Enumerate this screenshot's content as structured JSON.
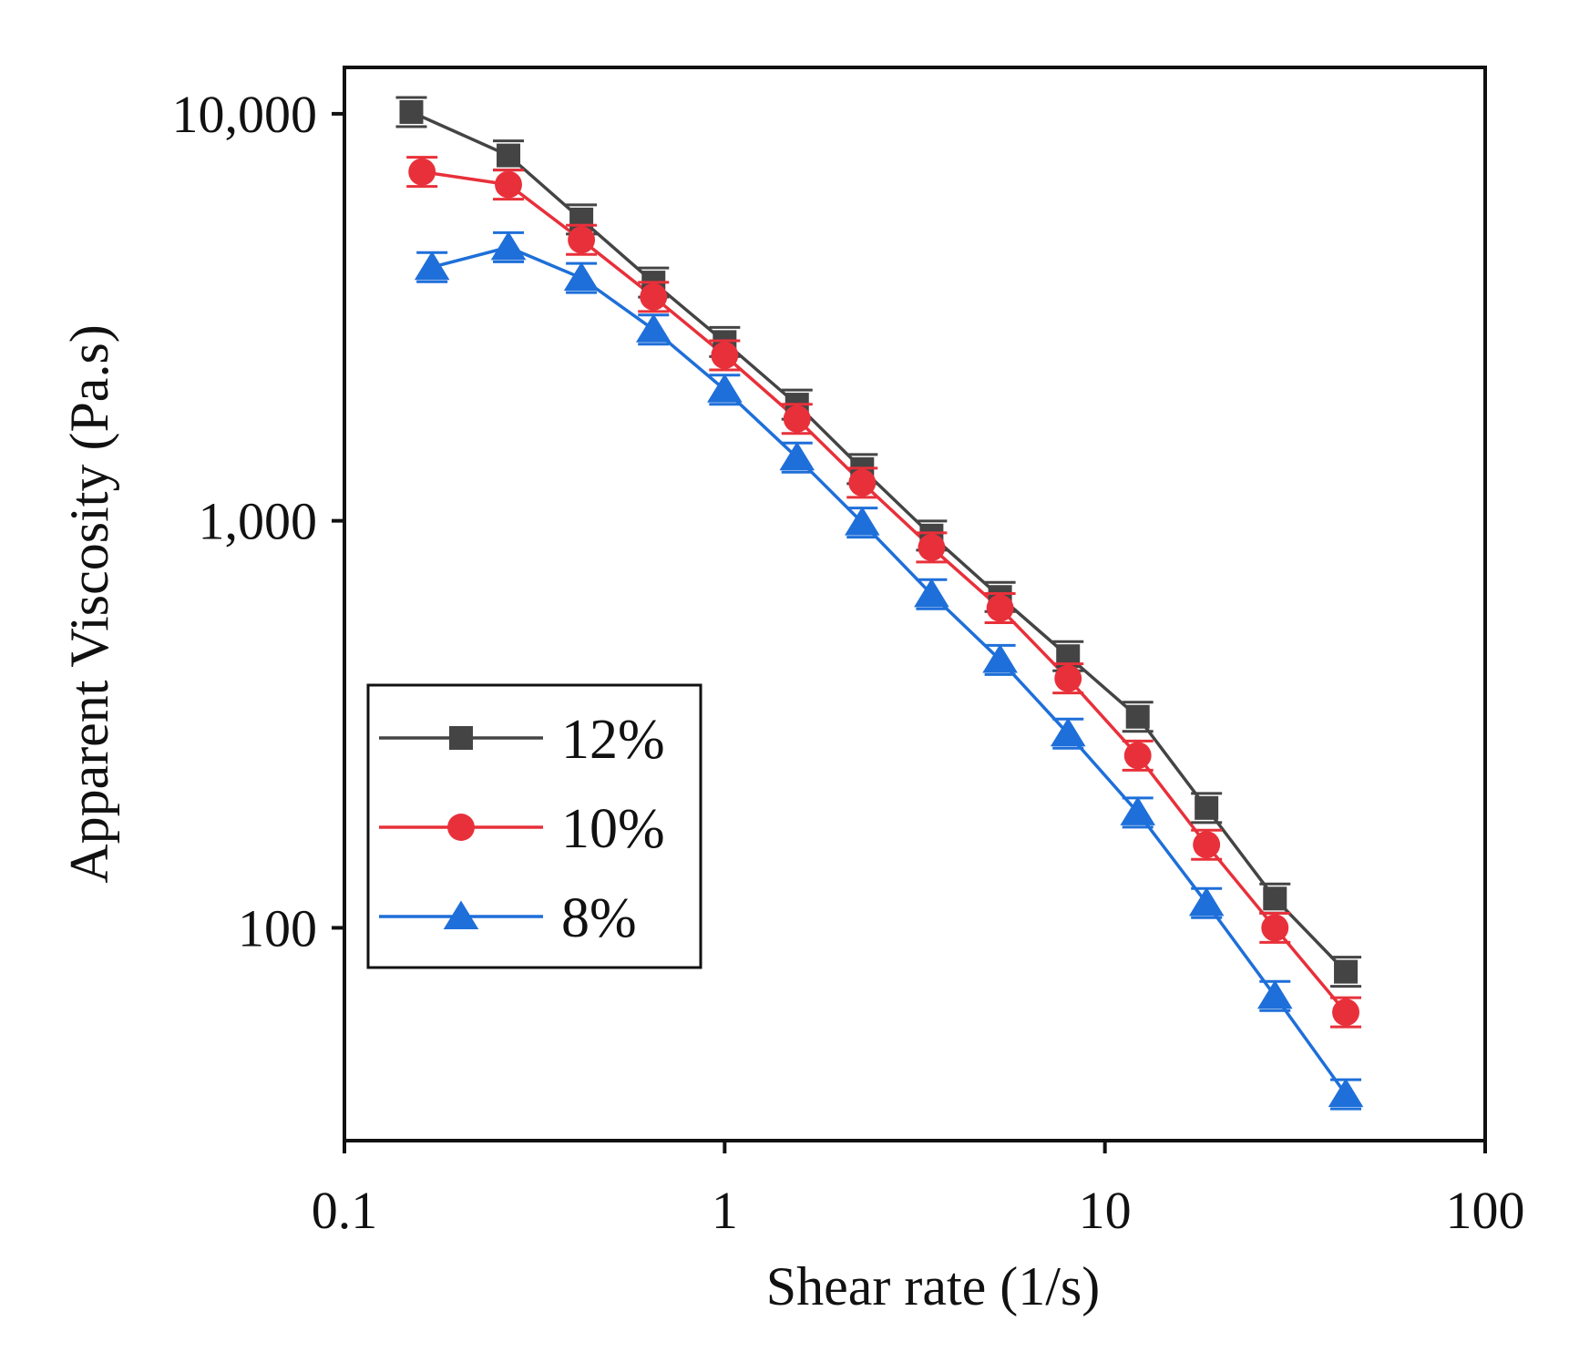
{
  "chart_data": {
    "type": "line",
    "title": "",
    "xlabel": "Shear rate (1/s)",
    "ylabel": "Apparent Viscosity (Pa.s)",
    "xscale": "log",
    "yscale": "log",
    "xlim": [
      0.1,
      100
    ],
    "ylim": [
      30,
      13000
    ],
    "x_ticks": [
      {
        "value": 0.1,
        "label": "0.1"
      },
      {
        "value": 1,
        "label": "1"
      },
      {
        "value": 10,
        "label": "10"
      },
      {
        "value": 100,
        "label": "100"
      }
    ],
    "y_ticks": [
      {
        "value": 100,
        "label": "100"
      },
      {
        "value": 1000,
        "label": "1,000"
      },
      {
        "value": 10000,
        "label": "10,000"
      }
    ],
    "grid": false,
    "legend_position": "lower-left",
    "series": [
      {
        "name": "12%",
        "color": "#444444",
        "marker": "square",
        "x": [
          0.15,
          0.27,
          0.42,
          0.65,
          1.0,
          1.55,
          2.3,
          3.5,
          5.3,
          8.0,
          12.2,
          18.5,
          28.0,
          43.0
        ],
        "y": [
          10100,
          7900,
          5500,
          3850,
          2750,
          1930,
          1340,
          920,
          650,
          465,
          330,
          197,
          118,
          78
        ]
      },
      {
        "name": "10%",
        "color": "#e8303a",
        "marker": "circle",
        "x": [
          0.16,
          0.27,
          0.42,
          0.65,
          1.0,
          1.55,
          2.3,
          3.5,
          5.3,
          8.0,
          12.2,
          18.5,
          28.0,
          43.0
        ],
        "y": [
          7200,
          6700,
          4900,
          3550,
          2550,
          1780,
          1240,
          860,
          610,
          410,
          265,
          160,
          100,
          62
        ]
      },
      {
        "name": "8%",
        "color": "#1e6fd9",
        "marker": "triangle",
        "x": [
          0.17,
          0.27,
          0.42,
          0.65,
          1.0,
          1.55,
          2.3,
          3.5,
          5.3,
          8.0,
          12.2,
          18.5,
          28.0,
          43.0
        ],
        "y": [
          4200,
          4700,
          3950,
          2950,
          2100,
          1430,
          990,
          660,
          455,
          300,
          192,
          115,
          68,
          39
        ]
      }
    ]
  }
}
